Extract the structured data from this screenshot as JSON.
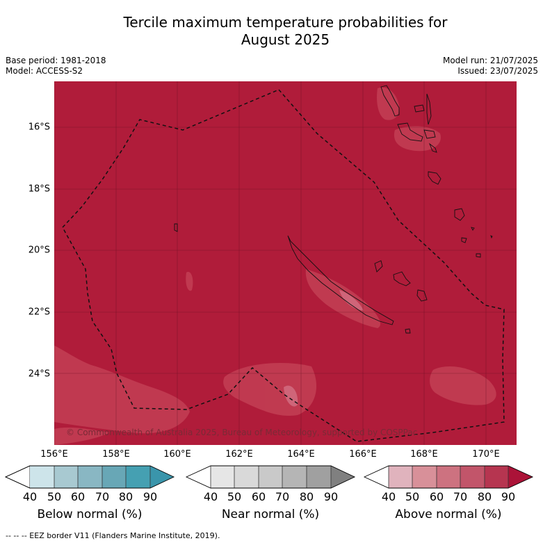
{
  "title_line1": "Tercile maximum temperature probabilities for",
  "title_line2": "August 2025",
  "meta_left": {
    "base_period": "Base period: 1981-2018",
    "model": "Model: ACCESS-S2"
  },
  "meta_right": {
    "model_run": "Model run: 21/07/2025",
    "issued": "Issued: 23/07/2025"
  },
  "map": {
    "latitude_labels": [
      "16°S",
      "18°S",
      "20°S",
      "22°S",
      "24°S"
    ],
    "longitude_labels": [
      "156°E",
      "158°E",
      "160°E",
      "162°E",
      "164°E",
      "166°E",
      "168°E",
      "170°E"
    ],
    "background_color": "#b01c3a",
    "lighter_shade_color": "#c33f55",
    "copyright": "© Commonwealth of Australia 2025, Bureau of Meteorology, supported by COSPPac"
  },
  "colorbars": [
    {
      "title": "Below normal (%)",
      "ticks": [
        "40",
        "50",
        "60",
        "70",
        "80",
        "90"
      ],
      "colors": [
        "#ffffff",
        "#cde4ea",
        "#a8c9d1",
        "#89b7c3",
        "#68a7b6",
        "#45a0b2",
        "#3a95ab"
      ]
    },
    {
      "title": "Near normal (%)",
      "ticks": [
        "40",
        "50",
        "60",
        "70",
        "80",
        "90"
      ],
      "colors": [
        "#ffffff",
        "#e6e6e6",
        "#d9d9d9",
        "#c9c9c9",
        "#b5b5b5",
        "#a0a0a0",
        "#808080"
      ]
    },
    {
      "title": "Above normal (%)",
      "ticks": [
        "40",
        "50",
        "60",
        "70",
        "80",
        "90"
      ],
      "colors": [
        "#ffffff",
        "#e0b3bd",
        "#d89099",
        "#cd7280",
        "#c2556a",
        "#b63550",
        "#ab1338"
      ]
    }
  ],
  "footnote": "--  --  -- EEZ border V11 (Flanders Marine Institute, 2019)."
}
